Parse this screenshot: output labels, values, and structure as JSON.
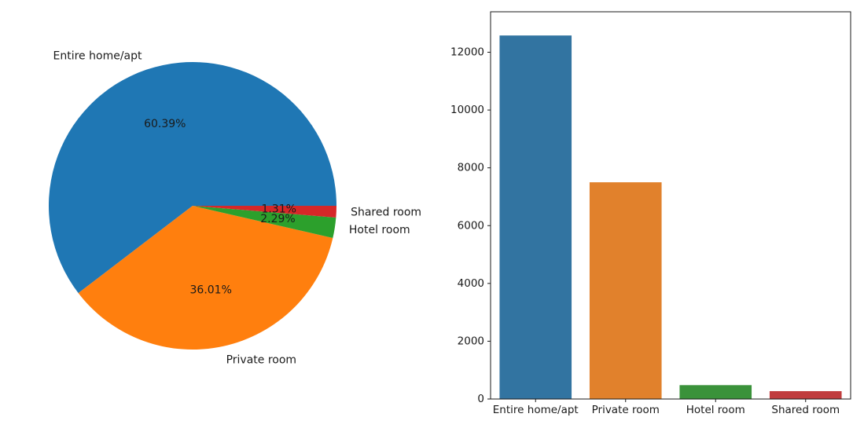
{
  "chart_data": [
    {
      "type": "pie",
      "categories": [
        "Entire home/apt",
        "Private room",
        "Hotel room",
        "Shared room"
      ],
      "values": [
        60.39,
        36.01,
        2.29,
        1.31
      ],
      "pct_labels": [
        "60.39%",
        "36.01%",
        "2.29%",
        "1.31%"
      ],
      "colors": [
        "#1f77b4",
        "#ff7f0e",
        "#2ca02c",
        "#d62728"
      ],
      "legend": "none"
    },
    {
      "type": "bar",
      "categories": [
        "Entire home/apt",
        "Private room",
        "Hotel room",
        "Shared room"
      ],
      "values": [
        12580,
        7500,
        480,
        272
      ],
      "colors": [
        "#3274a1",
        "#e1812c",
        "#3a923a",
        "#c03d3e"
      ],
      "ylim": [
        0,
        13400
      ],
      "yticks": [
        0,
        2000,
        4000,
        6000,
        8000,
        10000,
        12000
      ],
      "ytick_labels": [
        "0",
        "2000",
        "4000",
        "6000",
        "8000",
        "10000",
        "12000"
      ],
      "grid": false
    }
  ]
}
